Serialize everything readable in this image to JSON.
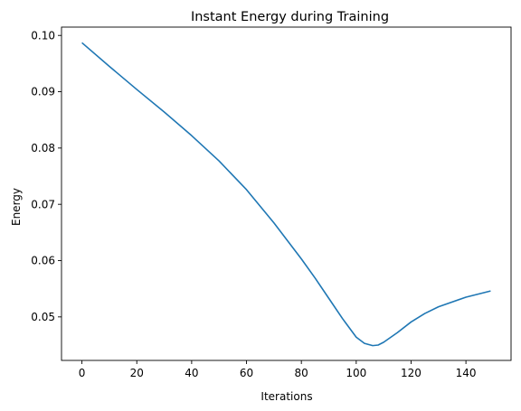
{
  "chart_data": {
    "type": "line",
    "title": "Instant Energy during Training",
    "xlabel": "Iterations",
    "ylabel": "Energy",
    "xlim": [
      -7.45,
      156.45
    ],
    "ylim": [
      0.04227,
      0.10148
    ],
    "xticks": [
      0,
      20,
      40,
      60,
      80,
      100,
      120,
      140
    ],
    "xtick_labels": [
      "0",
      "20",
      "40",
      "60",
      "80",
      "100",
      "120",
      "140"
    ],
    "yticks": [
      0.05,
      0.06,
      0.07,
      0.08,
      0.09,
      0.1
    ],
    "ytick_labels": [
      "0.05",
      "0.06",
      "0.07",
      "0.08",
      "0.09",
      "0.10"
    ],
    "grid": false,
    "legend": "none",
    "series": [
      {
        "color": "#1f77b4",
        "x": [
          0,
          10,
          20,
          30,
          40,
          50,
          60,
          70,
          80,
          85,
          90,
          95,
          100,
          103,
          106,
          108,
          110,
          115,
          120,
          125,
          130,
          140,
          149
        ],
        "y": [
          0.0987,
          0.0945,
          0.0904,
          0.0864,
          0.0822,
          0.0777,
          0.0726,
          0.0667,
          0.0603,
          0.0569,
          0.0533,
          0.0497,
          0.0464,
          0.0453,
          0.0449,
          0.045,
          0.0455,
          0.0472,
          0.0491,
          0.0506,
          0.0518,
          0.0535,
          0.0546
        ]
      }
    ]
  }
}
